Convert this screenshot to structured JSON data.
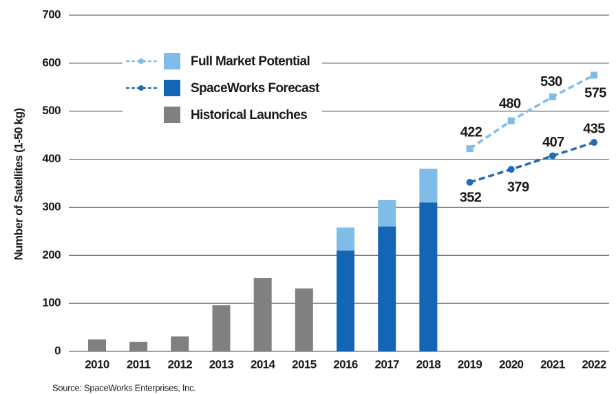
{
  "chart_data": {
    "type": "bar",
    "y_label": "Number of Satellites (1-50 kg)",
    "source": "Source: SpaceWorks Enterprises, Inc.",
    "categories": [
      "2010",
      "2011",
      "2012",
      "2013",
      "2014",
      "2015",
      "2016",
      "2017",
      "2018",
      "2019",
      "2020",
      "2021",
      "2022"
    ],
    "series": [
      {
        "name": "Full Market Potential",
        "color": "#7fbde8",
        "line_color": "#7fbde8",
        "marker": "square",
        "values": [
          null,
          null,
          null,
          null,
          null,
          null,
          48,
          55,
          70,
          null,
          null,
          null,
          null
        ],
        "line_values": [
          null,
          null,
          null,
          null,
          null,
          null,
          null,
          null,
          null,
          422,
          480,
          530,
          575
        ]
      },
      {
        "name": "SpaceWorks Forecast",
        "color": "#1565b6",
        "line_color": "#1f6db5",
        "marker": "circle",
        "values": [
          null,
          null,
          null,
          null,
          null,
          null,
          210,
          260,
          310,
          null,
          null,
          null,
          null
        ],
        "line_values": [
          null,
          null,
          null,
          null,
          null,
          null,
          null,
          null,
          null,
          352,
          379,
          407,
          435
        ]
      },
      {
        "name": "Historical Launches",
        "color": "#808080",
        "values": [
          25,
          20,
          31,
          96,
          153,
          131,
          null,
          null,
          null,
          null,
          null,
          null,
          null
        ]
      }
    ],
    "ylim": [
      0,
      700
    ],
    "yticks": [
      0,
      100,
      200,
      300,
      400,
      500,
      600,
      700
    ],
    "grid": true
  }
}
